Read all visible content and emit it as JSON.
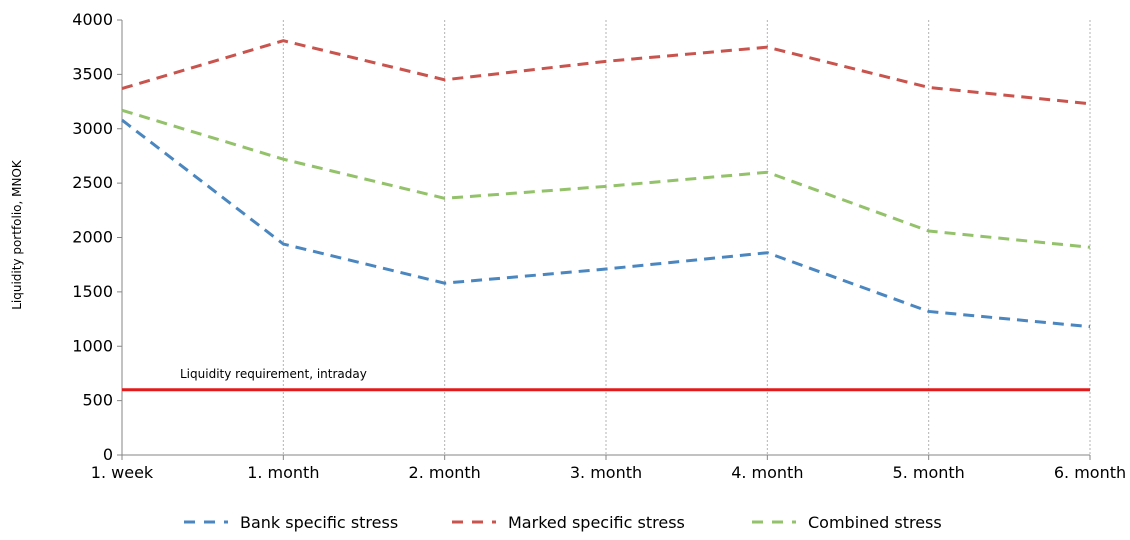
{
  "chart_data": {
    "type": "line",
    "categories": [
      "1. week",
      "1. month",
      "2. month",
      "3. month",
      "4. month",
      "5. month",
      "6. month"
    ],
    "ylabel": "Liquidity portfolio, MNOK",
    "ylim": [
      0,
      4000
    ],
    "yticks": [
      0,
      500,
      1000,
      1500,
      2000,
      2500,
      3000,
      3500,
      4000
    ],
    "grid": "vertical dotted",
    "legend_position": "bottom",
    "series": [
      {
        "name": "Bank specific stress",
        "color": "#4a86bf",
        "style": "dashed",
        "values": [
          3080,
          1940,
          1580,
          1710,
          1860,
          1320,
          1180
        ]
      },
      {
        "name": "Marked specific stress",
        "color": "#c9534d",
        "style": "dashed",
        "values": [
          3370,
          3810,
          3450,
          3620,
          3750,
          3380,
          3230
        ]
      },
      {
        "name": "Combined stress",
        "color": "#93c26a",
        "style": "dashed",
        "values": [
          3170,
          2720,
          2360,
          2470,
          2600,
          2060,
          1910
        ]
      }
    ],
    "reference_line": {
      "label": "Liquidity requirement, intraday",
      "value": 600,
      "color": "#e3191c"
    }
  }
}
